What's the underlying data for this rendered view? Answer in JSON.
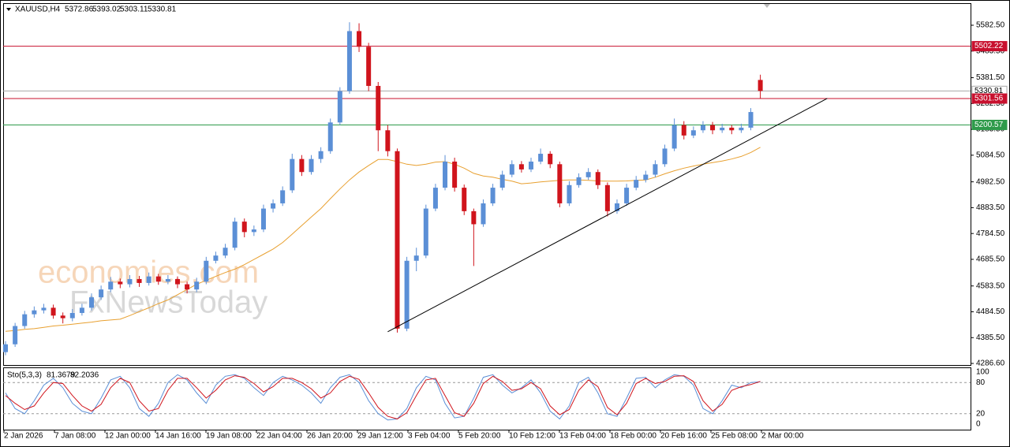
{
  "chart_data": {
    "type": "candlestick",
    "symbol": "XAUUSD,H4",
    "bull_color": "#5b8fd6",
    "bear_color": "#d0141c",
    "xlim": [
      -0.25,
      101
    ],
    "ylim": [
      4280.6,
      5667.1
    ],
    "yticks": [
      {
        "value": 5582.5,
        "label": "5582.50"
      },
      {
        "value": 5483.5,
        "label": "5483.50"
      },
      {
        "value": 5381.5,
        "label": "5381.50"
      },
      {
        "value": 5282.5,
        "label": "5282.50"
      },
      {
        "value": 5183.5,
        "label": "5183.50"
      },
      {
        "value": 5084.5,
        "label": "5084.50"
      },
      {
        "value": 4982.5,
        "label": "4982.50"
      },
      {
        "value": 4883.5,
        "label": "4883.50"
      },
      {
        "value": 4784.5,
        "label": "4784.50"
      },
      {
        "value": 4685.5,
        "label": "4685.50"
      },
      {
        "value": 4583.5,
        "label": "4583.50"
      },
      {
        "value": 4484.5,
        "label": "4484.50"
      },
      {
        "value": 4385.5,
        "label": "4385.50"
      },
      {
        "value": 4286.6,
        "label": "4286.60"
      }
    ],
    "xlabels": [
      "2 Jan 2026",
      "7 Jan 08:00",
      "12 Jan 00:00",
      "14 Jan 16:00",
      "19 Jan 08:00",
      "22 Jan 04:00",
      "26 Jan 20:00",
      "29 Jan 12:00",
      "3 Feb 04:00",
      "5 Feb 20:00",
      "10 Feb 12:00",
      "13 Feb 04:00",
      "18 Feb 00:00",
      "20 Feb 16:00",
      "25 Feb 08:00",
      "2 Mar 00:00"
    ],
    "levels": [
      {
        "value": 5502.22,
        "color": "#c8102e",
        "text_color": "#ffffff"
      },
      {
        "value": 5330.81,
        "color": "#a8a8a8",
        "text_color": "#000000"
      },
      {
        "value": 5301.56,
        "color": "#c8102e",
        "text_color": "#ffffff"
      },
      {
        "value": 5200.57,
        "color": "#2e9a4a",
        "text_color": "#ffffff"
      }
    ],
    "candles": [
      [
        4330,
        4372,
        4318,
        4360
      ],
      [
        4360,
        4442,
        4350,
        4430
      ],
      [
        4430,
        4488,
        4420,
        4475
      ],
      [
        4475,
        4505,
        4462,
        4490
      ],
      [
        4490,
        4515,
        4478,
        4500
      ],
      [
        4500,
        4512,
        4458,
        4470
      ],
      [
        4470,
        4482,
        4440,
        4460
      ],
      [
        4460,
        4495,
        4448,
        4480
      ],
      [
        4480,
        4515,
        4470,
        4500
      ],
      [
        4500,
        4555,
        4490,
        4540
      ],
      [
        4540,
        4585,
        4530,
        4570
      ],
      [
        4570,
        4618,
        4560,
        4600
      ],
      [
        4600,
        4612,
        4575,
        4590
      ],
      [
        4590,
        4625,
        4578,
        4610
      ],
      [
        4610,
        4622,
        4580,
        4595
      ],
      [
        4595,
        4635,
        4585,
        4620
      ],
      [
        4620,
        4630,
        4588,
        4600
      ],
      [
        4600,
        4625,
        4590,
        4610
      ],
      [
        4610,
        4620,
        4575,
        4590
      ],
      [
        4590,
        4600,
        4555,
        4570
      ],
      [
        4570,
        4615,
        4560,
        4600
      ],
      [
        4600,
        4695,
        4590,
        4680
      ],
      [
        4680,
        4715,
        4670,
        4700
      ],
      [
        4700,
        4745,
        4690,
        4730
      ],
      [
        4730,
        4845,
        4720,
        4830
      ],
      [
        4830,
        4842,
        4770,
        4790
      ],
      [
        4790,
        4815,
        4775,
        4800
      ],
      [
        4800,
        4895,
        4790,
        4880
      ],
      [
        4880,
        4915,
        4865,
        4900
      ],
      [
        4900,
        4965,
        4890,
        4950
      ],
      [
        4950,
        5090,
        4940,
        5070
      ],
      [
        5070,
        5085,
        5005,
        5020
      ],
      [
        5020,
        5085,
        5010,
        5070
      ],
      [
        5070,
        5115,
        5055,
        5100
      ],
      [
        5100,
        5225,
        5090,
        5210
      ],
      [
        5210,
        5345,
        5200,
        5330
      ],
      [
        5330,
        5594,
        5320,
        5560
      ],
      [
        5560,
        5590,
        5480,
        5500
      ],
      [
        5500,
        5515,
        5330,
        5350
      ],
      [
        5350,
        5365,
        5100,
        5180
      ],
      [
        5180,
        5200,
        5080,
        5100
      ],
      [
        5100,
        5110,
        4405,
        4420
      ],
      [
        4420,
        4695,
        4410,
        4680
      ],
      [
        4680,
        4730,
        4640,
        4700
      ],
      [
        4700,
        4895,
        4690,
        4880
      ],
      [
        4880,
        4975,
        4870,
        4960
      ],
      [
        4960,
        5085,
        4950,
        5060
      ],
      [
        5060,
        5075,
        4945,
        4960
      ],
      [
        4960,
        4972,
        4855,
        4870
      ],
      [
        4870,
        4880,
        4660,
        4820
      ],
      [
        4820,
        4915,
        4810,
        4900
      ],
      [
        4900,
        4975,
        4890,
        4960
      ],
      [
        4960,
        5025,
        4950,
        5010
      ],
      [
        5010,
        5065,
        5000,
        5050
      ],
      [
        5050,
        5062,
        5018,
        5030
      ],
      [
        5030,
        5075,
        5020,
        5060
      ],
      [
        5060,
        5110,
        5050,
        5090
      ],
      [
        5090,
        5100,
        5035,
        5050
      ],
      [
        5050,
        5060,
        4885,
        4900
      ],
      [
        4900,
        4985,
        4890,
        4970
      ],
      [
        4970,
        5015,
        4960,
        5000
      ],
      [
        5000,
        5035,
        4990,
        5020
      ],
      [
        5020,
        5030,
        4955,
        4970
      ],
      [
        4970,
        4980,
        4850,
        4870
      ],
      [
        4870,
        4915,
        4860,
        4900
      ],
      [
        4900,
        4975,
        4890,
        4960
      ],
      [
        4960,
        5005,
        4950,
        4990
      ],
      [
        4990,
        5025,
        4980,
        5010
      ],
      [
        5010,
        5065,
        5000,
        5050
      ],
      [
        5050,
        5125,
        5040,
        5110
      ],
      [
        5110,
        5225,
        5100,
        5200
      ],
      [
        5200,
        5215,
        5145,
        5160
      ],
      [
        5160,
        5195,
        5150,
        5180
      ],
      [
        5180,
        5215,
        5170,
        5200
      ],
      [
        5200,
        5212,
        5165,
        5180
      ],
      [
        5180,
        5205,
        5170,
        5190
      ],
      [
        5190,
        5200,
        5165,
        5180
      ],
      [
        5180,
        5205,
        5170,
        5190
      ],
      [
        5190,
        5265,
        5180,
        5250
      ],
      [
        5372.86,
        5393.02,
        5303.11,
        5330.81
      ]
    ],
    "ma": {
      "color": "#e8a030",
      "values": [
        4410,
        4413,
        4417,
        4420,
        4425,
        4430,
        4433,
        4437,
        4441,
        4445,
        4450,
        4453,
        4456,
        4470,
        4485,
        4500,
        4516,
        4530,
        4550,
        4570,
        4590,
        4605,
        4620,
        4635,
        4648,
        4665,
        4685,
        4705,
        4725,
        4750,
        4782,
        4815,
        4848,
        4880,
        4918,
        4955,
        4990,
        5020,
        5045,
        5068,
        5068,
        5060,
        5050,
        5045,
        5050,
        5058,
        5060,
        5050,
        5035,
        5015,
        5005,
        5000,
        4992,
        4985,
        4975,
        4978,
        4982,
        4985,
        4988,
        4990,
        4990,
        4988,
        4986,
        4985,
        4985,
        4986,
        4988,
        4990,
        5000,
        5013,
        5025,
        5035,
        5043,
        5050,
        5056,
        5062,
        5070,
        5080,
        5095,
        5115
      ]
    },
    "trendline": {
      "color": "#000000",
      "x": [
        40,
        86
      ],
      "values": [
        4408,
        5302
      ]
    },
    "watermarks": [
      "economies.com",
      "FxNewsToday"
    ],
    "oscillator": {
      "type": "line",
      "label": "Sto(5,3,3)",
      "ylim": [
        -10.6,
        109.1
      ],
      "yticks": [
        100,
        80,
        20,
        0
      ],
      "series": [
        {
          "color": "#5b8fd6",
          "values": [
            60,
            30,
            20,
            45,
            75,
            88,
            70,
            40,
            25,
            20,
            50,
            85,
            92,
            70,
            30,
            15,
            40,
            80,
            95,
            85,
            60,
            40,
            75,
            92,
            95,
            88,
            70,
            55,
            80,
            92,
            85,
            75,
            60,
            40,
            70,
            90,
            95,
            80,
            45,
            20,
            8,
            10,
            30,
            70,
            92,
            85,
            40,
            12,
            15,
            50,
            90,
            95,
            75,
            60,
            70,
            85,
            60,
            25,
            10,
            35,
            80,
            90,
            60,
            20,
            15,
            50,
            88,
            90,
            70,
            85,
            95,
            92,
            75,
            30,
            20,
            45,
            75,
            70,
            80,
            81.3679
          ]
        },
        {
          "color": "#d0141c",
          "values": [
            55,
            40,
            28,
            35,
            60,
            80,
            78,
            55,
            35,
            25,
            38,
            70,
            88,
            80,
            45,
            25,
            30,
            65,
            88,
            88,
            70,
            50,
            65,
            85,
            93,
            90,
            78,
            62,
            72,
            88,
            88,
            80,
            68,
            50,
            60,
            82,
            92,
            86,
            60,
            32,
            15,
            10,
            22,
            55,
            85,
            88,
            55,
            22,
            15,
            40,
            78,
            92,
            82,
            65,
            68,
            80,
            68,
            35,
            18,
            28,
            65,
            85,
            72,
            32,
            18,
            40,
            78,
            88,
            78,
            82,
            92,
            93,
            82,
            45,
            25,
            38,
            65,
            72,
            76,
            82.2036
          ]
        }
      ]
    }
  }
}
